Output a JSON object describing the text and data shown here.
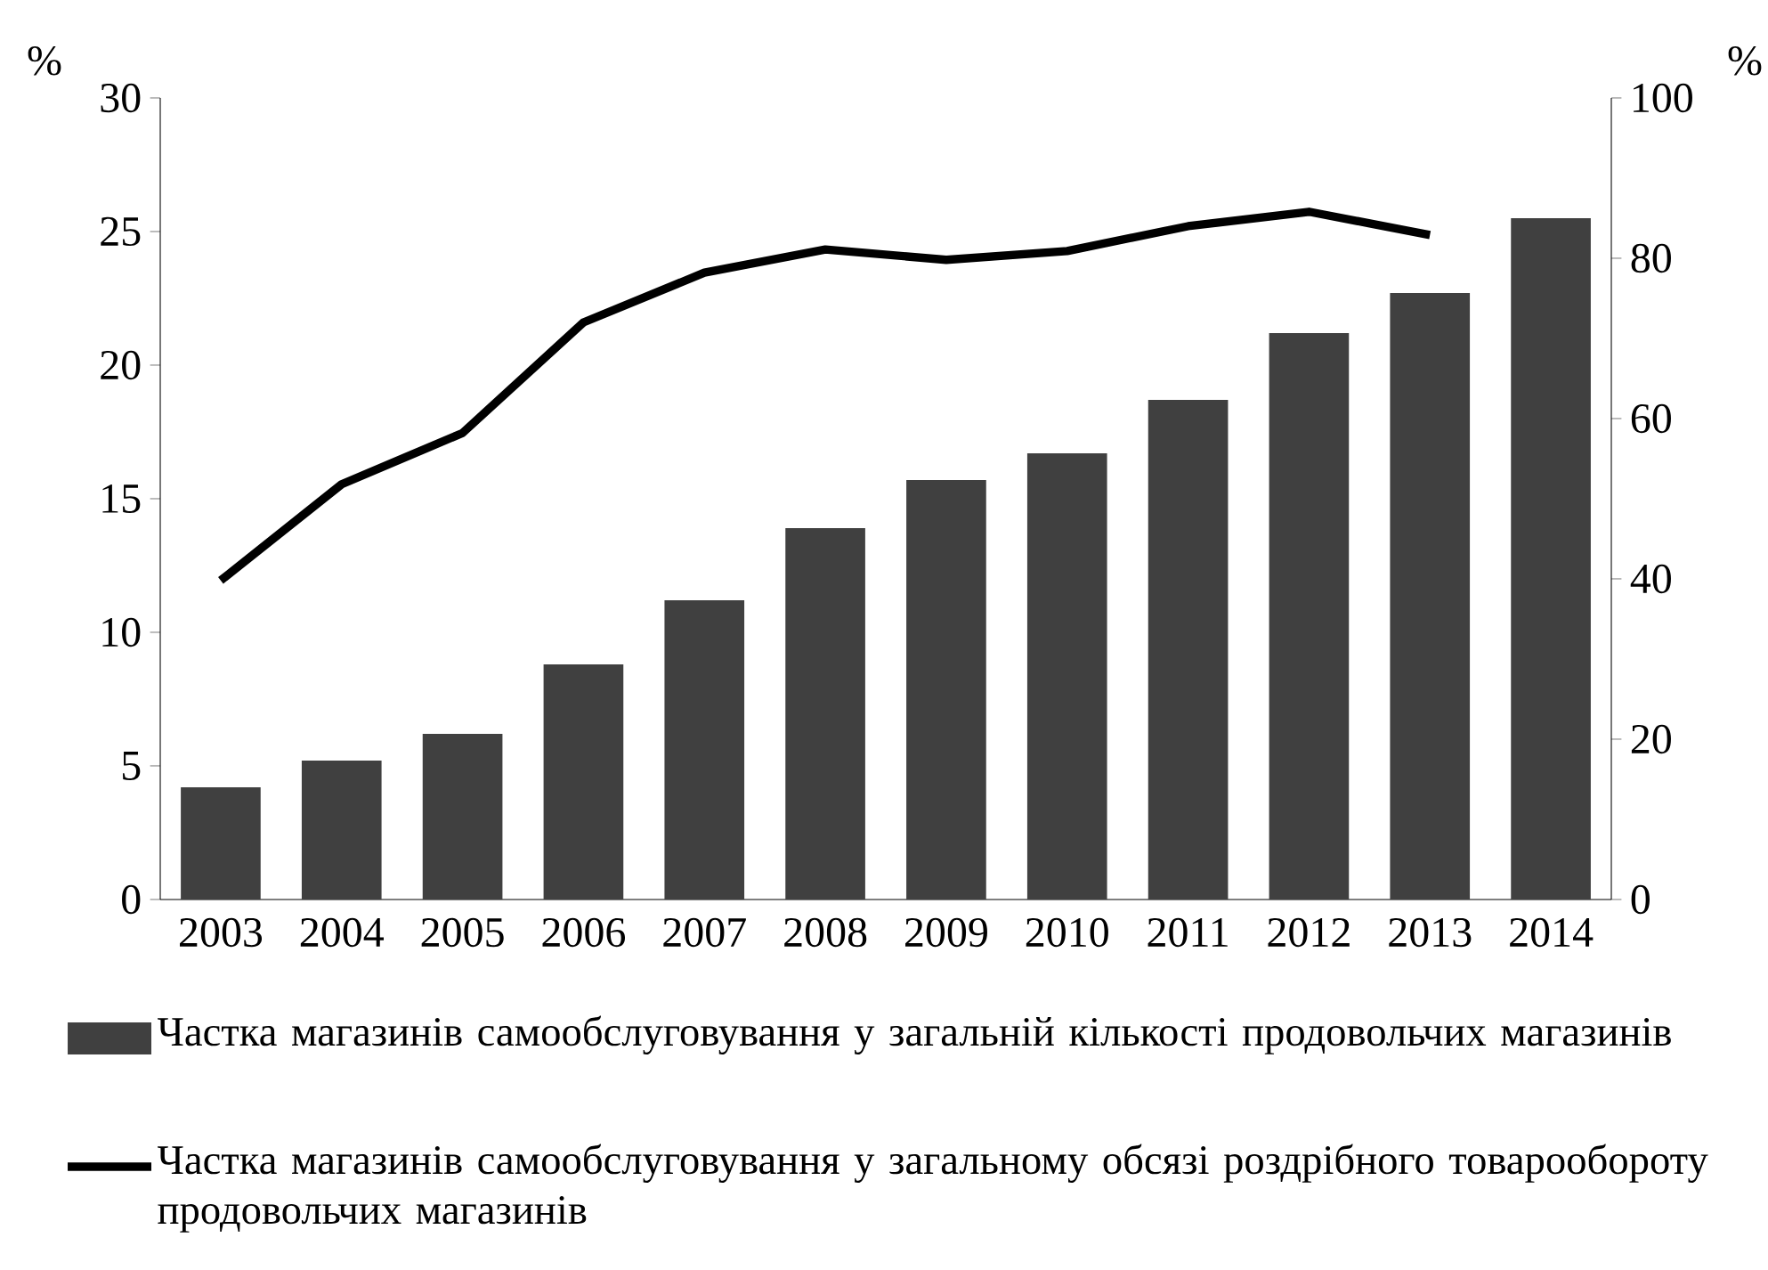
{
  "chart_data": {
    "type": "bar",
    "categories": [
      "2003",
      "2004",
      "2005",
      "2006",
      "2007",
      "2008",
      "2009",
      "2010",
      "2011",
      "2012",
      "2013",
      "2014"
    ],
    "series": [
      {
        "name": "Частка магазинів самообслуговування у загальній кількості продовольчих магазинів",
        "color": "#404040",
        "values": [
          4.2,
          5.2,
          6.2,
          8.8,
          11.2,
          13.9,
          15.7,
          16.7,
          18.7,
          21.2,
          22.7,
          25.5
        ]
      },
      {
        "name": "Частка магазинів самообслуговування у загальному обсязі роздрібного товарообороту продовольчих магазинів",
        "type": "line",
        "axis": "y2",
        "color": "#000000",
        "values": [
          39.8,
          51.8,
          58.2,
          72,
          78.2,
          81.1,
          79.8,
          80.9,
          84,
          85.8,
          82.9,
          null
        ]
      }
    ],
    "ylabel": "%",
    "y2label": "%",
    "ylim": [
      0,
      30
    ],
    "yticks": [
      0,
      5,
      10,
      15,
      20,
      25,
      30
    ],
    "y2lim": [
      0,
      100
    ],
    "y2ticks": [
      0,
      20,
      40,
      60,
      80,
      100
    ],
    "legend": "bottom"
  }
}
